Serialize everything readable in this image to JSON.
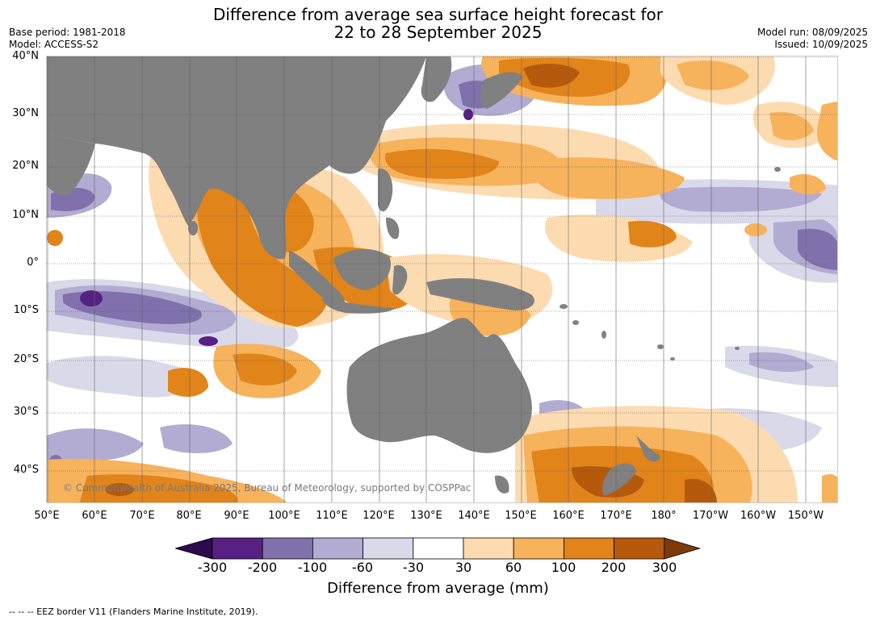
{
  "title_line1": "Difference from average sea surface height forecast for",
  "title_line2": "22 to 28 September 2025",
  "base_period": "Base period: 1981-2018",
  "model": "Model: ACCESS-S2",
  "model_run": "Model run: 08/09/2025",
  "issued": "Issued: 10/09/2025",
  "lat_labels": [
    "40°N",
    "30°N",
    "20°N",
    "10°N",
    "0°",
    "10°S",
    "20°S",
    "30°S",
    "40°S"
  ],
  "lon_labels": [
    "50°E",
    "60°E",
    "70°E",
    "80°E",
    "90°E",
    "100°E",
    "110°E",
    "120°E",
    "130°E",
    "140°E",
    "150°E",
    "160°E",
    "170°E",
    "180°",
    "170°W",
    "160°W",
    "150°W"
  ],
  "copyright": "© Commonwealth of Australia 2025, Bureau of Meteorology, supported by COSPPac",
  "colorbar": {
    "ticks": [
      "-300",
      "-200",
      "-100",
      "-60",
      "-30",
      "30",
      "60",
      "100",
      "200",
      "300"
    ],
    "colors": [
      "#2d0a4a",
      "#562183",
      "#8071ac",
      "#b2abd2",
      "#d9d9ea",
      "#ffffff",
      "#fddbb0",
      "#f7b25c",
      "#e1841a",
      "#b5590c",
      "#7d3a0a"
    ],
    "label": "Difference from average (mm)"
  },
  "legend_footer": "--  --  -- EEZ border V11 (Flanders Marine Institute, 2019).",
  "colors": {
    "land": "#808080",
    "ocean_neutral": "#ffffff",
    "grid": "#555555"
  }
}
